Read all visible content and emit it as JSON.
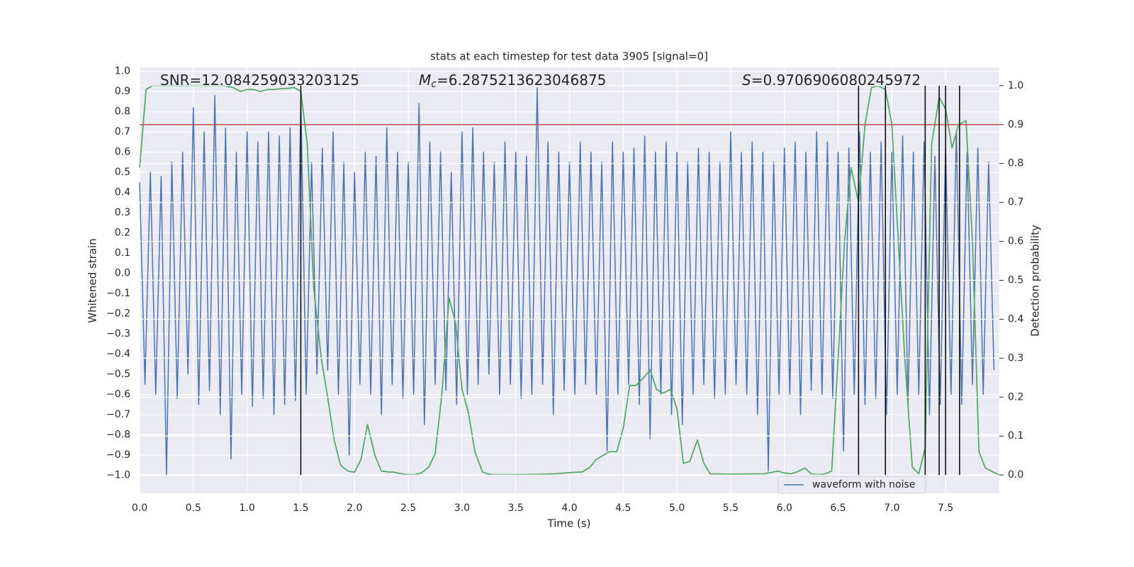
{
  "chart_data": {
    "type": "line",
    "title": "stats at each timestep for test data 3905 [signal=0]",
    "xlabel": "Time (s)",
    "ylabel": "Whitened strain",
    "y2label": "Detection probability",
    "annotations": [
      {
        "text": "SNR=12.084259033203125"
      },
      {
        "symbol": "M",
        "subscript": "c",
        "text": "=6.2875213623046875"
      },
      {
        "symbol": "S",
        "text": "=0.9706906080245972"
      }
    ],
    "xlim": [
      0,
      8.0
    ],
    "ylim": [
      -1.09,
      1.02
    ],
    "y2lim": [
      -0.047,
      1.047
    ],
    "grid": true,
    "legend": "lower right",
    "xticks": [
      {
        "value": 0,
        "label": "0.0"
      },
      {
        "value": 0.5,
        "label": "0.5"
      },
      {
        "value": 1,
        "label": "1.0"
      },
      {
        "value": 1.5,
        "label": "1.5"
      },
      {
        "value": 2,
        "label": "2.0"
      },
      {
        "value": 2.5,
        "label": "2.5"
      },
      {
        "value": 3,
        "label": "3.0"
      },
      {
        "value": 3.5,
        "label": "3.5"
      },
      {
        "value": 4,
        "label": "4.0"
      },
      {
        "value": 4.5,
        "label": "4.5"
      },
      {
        "value": 5,
        "label": "5.0"
      },
      {
        "value": 5.5,
        "label": "5.5"
      },
      {
        "value": 6,
        "label": "6.0"
      },
      {
        "value": 6.5,
        "label": "6.5"
      },
      {
        "value": 7,
        "label": "7.0"
      },
      {
        "value": 7.5,
        "label": "7.5"
      }
    ],
    "yticks": [
      {
        "value": -1,
        "label": "−1.0"
      },
      {
        "value": -0.9,
        "label": "−0.9"
      },
      {
        "value": -0.8,
        "label": "−0.8"
      },
      {
        "value": -0.7,
        "label": "−0.7"
      },
      {
        "value": -0.6,
        "label": "−0.6"
      },
      {
        "value": -0.5,
        "label": "−0.5"
      },
      {
        "value": -0.4,
        "label": "−0.4"
      },
      {
        "value": -0.3,
        "label": "−0.3"
      },
      {
        "value": -0.2,
        "label": "−0.2"
      },
      {
        "value": -0.1,
        "label": "−0.1"
      },
      {
        "value": 0,
        "label": "0.0"
      },
      {
        "value": 0.1,
        "label": "0.1"
      },
      {
        "value": 0.2,
        "label": "0.2"
      },
      {
        "value": 0.3,
        "label": "0.3"
      },
      {
        "value": 0.4,
        "label": "0.4"
      },
      {
        "value": 0.5,
        "label": "0.5"
      },
      {
        "value": 0.6,
        "label": "0.6"
      },
      {
        "value": 0.7,
        "label": "0.7"
      },
      {
        "value": 0.8,
        "label": "0.8"
      },
      {
        "value": 0.9,
        "label": "0.9"
      },
      {
        "value": 1,
        "label": "1.0"
      }
    ],
    "y2ticks": [
      {
        "value": 0,
        "label": "0.0"
      },
      {
        "value": 0.1,
        "label": "0.1"
      },
      {
        "value": 0.2,
        "label": "0.2"
      },
      {
        "value": 0.3,
        "label": "0.3"
      },
      {
        "value": 0.4,
        "label": "0.4"
      },
      {
        "value": 0.5,
        "label": "0.5"
      },
      {
        "value": 0.6,
        "label": "0.6"
      },
      {
        "value": 0.7,
        "label": "0.7"
      },
      {
        "value": 0.8,
        "label": "0.8"
      },
      {
        "value": 0.9,
        "label": "0.9"
      },
      {
        "value": 1,
        "label": "1.0"
      }
    ],
    "series": [
      {
        "name": "waveform with noise",
        "color": "#4c72b0",
        "x": [
          0,
          0.05,
          0.1,
          0.15,
          0.2,
          0.25,
          0.3,
          0.35,
          0.4,
          0.45,
          0.5,
          0.55,
          0.6,
          0.65,
          0.7,
          0.75,
          0.8,
          0.85,
          0.9,
          0.95,
          1,
          1.05,
          1.1,
          1.15,
          1.2,
          1.25,
          1.3,
          1.35,
          1.4,
          1.45,
          1.5,
          1.55,
          1.6,
          1.65,
          1.7,
          1.75,
          1.8,
          1.85,
          1.9,
          1.95,
          2,
          2.05,
          2.1,
          2.15,
          2.2,
          2.25,
          2.3,
          2.35,
          2.4,
          2.45,
          2.5,
          2.55,
          2.6,
          2.65,
          2.7,
          2.75,
          2.8,
          2.85,
          2.9,
          2.95,
          3,
          3.05,
          3.1,
          3.15,
          3.2,
          3.25,
          3.3,
          3.35,
          3.4,
          3.45,
          3.5,
          3.55,
          3.6,
          3.65,
          3.7,
          3.75,
          3.8,
          3.85,
          3.9,
          3.95,
          4,
          4.05,
          4.1,
          4.15,
          4.2,
          4.25,
          4.3,
          4.35,
          4.4,
          4.45,
          4.5,
          4.55,
          4.6,
          4.65,
          4.7,
          4.75,
          4.8,
          4.85,
          4.9,
          4.95,
          5,
          5.05,
          5.1,
          5.15,
          5.2,
          5.25,
          5.3,
          5.35,
          5.4,
          5.45,
          5.5,
          5.55,
          5.6,
          5.65,
          5.7,
          5.75,
          5.8,
          5.85,
          5.9,
          5.95,
          6,
          6.05,
          6.1,
          6.15,
          6.2,
          6.25,
          6.3,
          6.35,
          6.4,
          6.45,
          6.5,
          6.55,
          6.6,
          6.65,
          6.7,
          6.75,
          6.8,
          6.85,
          6.9,
          6.95,
          7,
          7.05,
          7.1,
          7.15,
          7.2,
          7.25,
          7.3,
          7.35,
          7.4,
          7.45,
          7.5,
          7.55,
          7.6,
          7.65,
          7.7,
          7.75,
          7.8,
          7.85,
          7.9,
          7.95
        ],
        "values": [
          0.45,
          -0.55,
          0.5,
          -0.6,
          0.48,
          -1.0,
          0.55,
          -0.62,
          0.6,
          -0.5,
          0.82,
          -0.65,
          0.7,
          -0.58,
          0.88,
          -0.7,
          0.72,
          -0.92,
          0.6,
          -0.6,
          0.7,
          -0.66,
          0.65,
          -0.62,
          0.7,
          -0.7,
          0.68,
          -0.65,
          0.72,
          -0.63,
          0.85,
          -0.6,
          0.55,
          -0.5,
          0.62,
          -0.48,
          0.7,
          -0.6,
          0.55,
          -0.9,
          0.5,
          -0.55,
          0.6,
          -0.6,
          0.58,
          -0.7,
          0.72,
          -0.55,
          0.6,
          -0.62,
          0.55,
          -0.6,
          0.84,
          -0.75,
          0.65,
          -0.55,
          0.6,
          -0.58,
          0.5,
          -0.65,
          0.7,
          -0.6,
          0.72,
          -0.55,
          0.6,
          -0.5,
          0.55,
          -0.6,
          0.65,
          -0.55,
          0.6,
          -0.62,
          0.58,
          -0.6,
          0.92,
          -0.55,
          0.65,
          -0.7,
          0.6,
          -0.58,
          0.55,
          -0.6,
          0.65,
          -0.55,
          0.6,
          -0.6,
          0.55,
          -0.88,
          0.65,
          -0.6,
          0.6,
          -0.55,
          0.62,
          -0.65,
          0.68,
          -0.82,
          0.6,
          -0.6,
          0.65,
          -0.7,
          0.6,
          -0.75,
          0.55,
          -0.6,
          0.62,
          -0.55,
          0.6,
          -0.62,
          0.55,
          -0.6,
          0.7,
          -0.55,
          0.6,
          -0.6,
          0.65,
          -0.7,
          0.6,
          -0.98,
          0.55,
          -0.6,
          0.62,
          -0.6,
          0.65,
          -0.7,
          0.6,
          -0.58,
          0.7,
          -0.6,
          0.65,
          -0.62,
          0.6,
          -0.88,
          0.62,
          -0.6,
          0.7,
          -0.65,
          0.6,
          -0.62,
          0.65,
          -0.7,
          0.6,
          -0.6,
          0.68,
          -0.65,
          0.6,
          -0.6,
          0.65,
          -0.7,
          0.58,
          -0.65,
          0.62,
          -0.6,
          0.7,
          -0.65,
          0.6,
          -0.55,
          0.62,
          -0.6,
          0.55,
          -0.48
        ]
      },
      {
        "color": "#55a868",
        "axis": "y2",
        "x": [
          0,
          0.06,
          0.12,
          0.2,
          0.3,
          0.4,
          0.5,
          0.6,
          0.7,
          0.8,
          0.87,
          0.94,
          1,
          1.06,
          1.12,
          1.19,
          1.25,
          1.31,
          1.37,
          1.44,
          1.5,
          1.56,
          1.62,
          1.69,
          1.75,
          1.81,
          1.87,
          1.94,
          2,
          2.06,
          2.12,
          2.19,
          2.25,
          2.31,
          2.37,
          2.44,
          2.5,
          2.56,
          2.62,
          2.69,
          2.75,
          2.81,
          2.88,
          2.94,
          3,
          3.06,
          3.12,
          3.19,
          3.25,
          3.31,
          3.5,
          3.75,
          3.87,
          4,
          4.06,
          4.12,
          4.19,
          4.25,
          4.31,
          4.37,
          4.44,
          4.5,
          4.56,
          4.62,
          4.69,
          4.75,
          4.81,
          4.87,
          4.94,
          5,
          5.06,
          5.12,
          5.19,
          5.25,
          5.31,
          5.5,
          5.81,
          5.94,
          6,
          6.06,
          6.12,
          6.19,
          6.25,
          6.31,
          6.37,
          6.44,
          6.5,
          6.56,
          6.62,
          6.69,
          6.75,
          6.81,
          6.87,
          6.94,
          7,
          7.06,
          7.12,
          7.19,
          7.25,
          7.31,
          7.37,
          7.44,
          7.5,
          7.56,
          7.62,
          7.69,
          7.75,
          7.81,
          7.87,
          7.94,
          8
        ],
        "values": [
          0.79,
          0.99,
          1.0,
          1.0,
          1.0,
          1.0,
          1.0,
          1.0,
          1.0,
          1.0,
          0.995,
          0.985,
          0.99,
          0.99,
          0.985,
          0.99,
          0.99,
          0.992,
          0.993,
          0.995,
          0.985,
          0.85,
          0.48,
          0.3,
          0.2,
          0.09,
          0.025,
          0.01,
          0.007,
          0.04,
          0.13,
          0.05,
          0.01,
          0.008,
          0.007,
          0.003,
          0.001,
          0.001,
          0.005,
          0.02,
          0.055,
          0.2,
          0.455,
          0.39,
          0.22,
          0.16,
          0.06,
          0.008,
          0.002,
          0.001,
          0.001,
          0.002,
          0.003,
          0.006,
          0.007,
          0.008,
          0.02,
          0.04,
          0.05,
          0.06,
          0.06,
          0.12,
          0.23,
          0.23,
          0.25,
          0.27,
          0.22,
          0.21,
          0.22,
          0.17,
          0.03,
          0.035,
          0.09,
          0.03,
          0.003,
          0.002,
          0.003,
          0.01,
          0.005,
          0.003,
          0.008,
          0.018,
          0.003,
          0.001,
          0.002,
          0.01,
          0.3,
          0.6,
          0.79,
          0.7,
          0.9,
          0.995,
          1.0,
          0.99,
          0.9,
          0.6,
          0.3,
          0.02,
          0.003,
          0.07,
          0.85,
          0.97,
          0.94,
          0.84,
          0.9,
          0.91,
          0.6,
          0.06,
          0.018,
          0.008,
          0.0
        ]
      }
    ],
    "threshold": {
      "y2": 0.9,
      "color": "#c44e52"
    },
    "vlines": {
      "color": "#000000",
      "y2": [
        0,
        1
      ],
      "x": [
        1.5,
        6.69,
        6.94,
        7.31,
        7.44,
        7.5,
        7.63
      ]
    }
  }
}
